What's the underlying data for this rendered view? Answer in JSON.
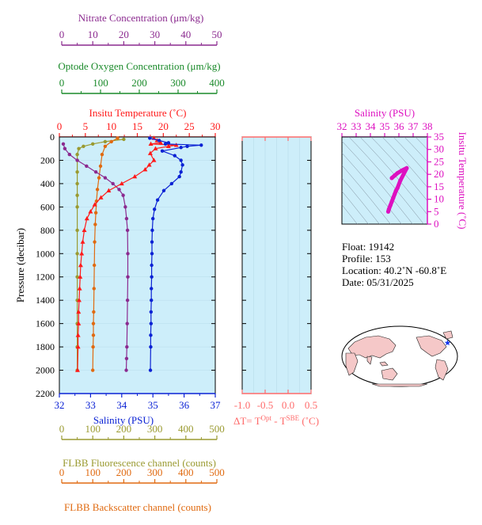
{
  "colors": {
    "nitrate": "#8b2a8f",
    "oxygen": "#1a8a2a",
    "temperature": "#ff1a1a",
    "salinity": "#0b22d4",
    "fluorescence": "#9a9a30",
    "backscatter": "#e06a10",
    "ts_accent": "#dd10c0",
    "plot_bg": "#cdeefa",
    "delta_axis": "#ff6a6a"
  },
  "chart_data": [
    {
      "type": "line",
      "name": "profile",
      "ylabel": "Pressure (decibar)",
      "ylim": [
        2200,
        0
      ],
      "yticks": [
        0,
        200,
        400,
        600,
        800,
        1000,
        1200,
        1400,
        1600,
        1800,
        2000,
        2200
      ],
      "axes": {
        "nitrate": {
          "label": "Nitrate Concentration (μm/kg)",
          "range": [
            0,
            50
          ],
          "ticks": [
            0,
            10,
            20,
            30,
            40,
            50
          ]
        },
        "oxygen": {
          "label": "Optode Oxygen Concentration (μm/kg)",
          "range": [
            0,
            400
          ],
          "ticks": [
            0,
            100,
            200,
            300,
            400
          ]
        },
        "temperature": {
          "label": "Insitu Temperature (˚C)",
          "range": [
            0,
            30
          ],
          "ticks": [
            0,
            5,
            10,
            15,
            20,
            25,
            30
          ]
        },
        "salinity": {
          "label": "Salinity (PSU)",
          "range": [
            32,
            37
          ],
          "ticks": [
            32,
            33,
            34,
            35,
            36,
            37
          ]
        },
        "fluorescence": {
          "label": "FLBB Fluorescence channel (counts)",
          "range": [
            0,
            500
          ],
          "ticks": [
            0,
            100,
            200,
            300,
            400,
            500
          ]
        },
        "backscatter": {
          "label": "FLBB Backscatter channel (counts)",
          "range": [
            0,
            500
          ],
          "ticks": [
            0,
            100,
            200,
            300,
            400,
            500
          ]
        }
      },
      "series": [
        {
          "key": "salinity",
          "name": "Salinity (PSU)",
          "marker": "circle",
          "x": [
            34.9,
            35.2,
            35.5,
            35.4,
            36.55,
            36.1,
            35.9,
            35.3,
            35.7,
            35.9,
            35.95,
            35.9,
            35.85,
            35.6,
            35.35,
            35.15,
            35.05,
            35.0,
            34.98,
            34.97,
            34.97,
            34.96,
            34.96,
            34.95,
            34.95,
            34.94,
            34.94,
            34.93,
            34.93,
            34.92
          ],
          "y": [
            10,
            30,
            50,
            60,
            70,
            80,
            90,
            120,
            160,
            200,
            240,
            300,
            340,
            400,
            460,
            540,
            620,
            700,
            800,
            900,
            1000,
            1100,
            1200,
            1300,
            1400,
            1500,
            1600,
            1700,
            1800,
            2000
          ]
        },
        {
          "key": "temperature",
          "name": "Insitu Temperature (˚C)",
          "marker": "triangle",
          "x": [
            18.2,
            18.8,
            19.5,
            17.6,
            22.5,
            21.0,
            18.5,
            17.5,
            18.2,
            17.3,
            16.5,
            14.5,
            12.0,
            9.5,
            8.0,
            6.8,
            6.0,
            5.3,
            4.8,
            4.5,
            4.3,
            4.1,
            4.0,
            3.9,
            3.8,
            3.7,
            3.7,
            3.6,
            3.6,
            3.5
          ],
          "y": [
            10,
            30,
            50,
            60,
            70,
            80,
            100,
            140,
            200,
            240,
            280,
            340,
            400,
            460,
            520,
            580,
            640,
            700,
            800,
            900,
            1000,
            1100,
            1200,
            1300,
            1400,
            1500,
            1600,
            1700,
            1800,
            2000
          ]
        },
        {
          "key": "nitrate",
          "name": "Nitrate Concentration (μm/kg)",
          "marker": "circle",
          "x": [
            0.5,
            1.0,
            2.5,
            5.0,
            8.0,
            11.0,
            14.0,
            16.5,
            18.5,
            19.8,
            20.5,
            20.9,
            21.2,
            21.3,
            21.3,
            21.2,
            21.1,
            21.0,
            20.9,
            20.8
          ],
          "y": [
            60,
            100,
            150,
            200,
            250,
            300,
            350,
            400,
            450,
            500,
            600,
            700,
            800,
            1000,
            1200,
            1400,
            1600,
            1800,
            1900,
            2000
          ]
        },
        {
          "key": "fluorescence",
          "name": "FLBB Fluorescence channel (counts)",
          "marker": "circle",
          "x": [
            200,
            140,
            100,
            70,
            55,
            50,
            50,
            50,
            50,
            50,
            50,
            50,
            50,
            50,
            50,
            50,
            50,
            50
          ],
          "y": [
            20,
            40,
            60,
            80,
            100,
            150,
            200,
            300,
            400,
            500,
            600,
            800,
            1000,
            1200,
            1400,
            1600,
            1800,
            2000
          ]
        },
        {
          "key": "backscatter",
          "name": "FLBB Backscatter channel (counts)",
          "marker": "circle",
          "x": [
            180,
            160,
            140,
            130,
            125,
            120,
            115,
            112,
            110,
            108,
            106,
            105,
            104,
            103,
            102,
            102,
            101,
            100
          ],
          "y": [
            10,
            40,
            80,
            150,
            250,
            350,
            450,
            550,
            650,
            750,
            900,
            1100,
            1300,
            1500,
            1600,
            1700,
            1800,
            2000
          ]
        }
      ]
    },
    {
      "type": "line",
      "name": "delta-temperature",
      "xlabel": "ΔT= T",
      "xlabel_sup1": "Opt",
      "xlabel_mid": " - T",
      "xlabel_sup2": "SBE",
      "xlabel_end": " (˚C)",
      "xlim": [
        -1.0,
        0.5
      ],
      "xticks": [
        -1.0,
        -0.5,
        0.0,
        0.5
      ],
      "xticklabels": [
        "-1.0",
        "-0.5",
        "0.0",
        "0.5"
      ],
      "ylim": [
        2200,
        0
      ],
      "values": []
    },
    {
      "type": "scatter",
      "name": "ts-diagram",
      "xlabel": "Salinity (PSU)",
      "ylabel": "Insitu Temperature (˚C)",
      "xlim": [
        32,
        38
      ],
      "xticks": [
        32,
        33,
        34,
        35,
        36,
        37,
        38
      ],
      "ylim": [
        0,
        35
      ],
      "yticks": [
        0,
        5,
        10,
        15,
        20,
        25,
        30,
        35
      ],
      "x": [
        35.5,
        35.7,
        35.9,
        36.2,
        36.55,
        36.1,
        35.9,
        35.8,
        35.7,
        35.6,
        35.5,
        35.4,
        35.3,
        35.25
      ],
      "y": [
        18.5,
        19.5,
        20.5,
        21.5,
        22.5,
        17.5,
        14.5,
        13.5,
        12.0,
        10.5,
        9.0,
        7.5,
        6.0,
        5.0
      ]
    }
  ],
  "info": {
    "float": "Float:  19142",
    "profile": "Profile:  153",
    "location_text": "Location:  40.2˚N  -60.8˚E",
    "date": "Date:  05/31/2025"
  },
  "map": {
    "marker_lat": 40.2,
    "marker_lon": -60.8
  }
}
